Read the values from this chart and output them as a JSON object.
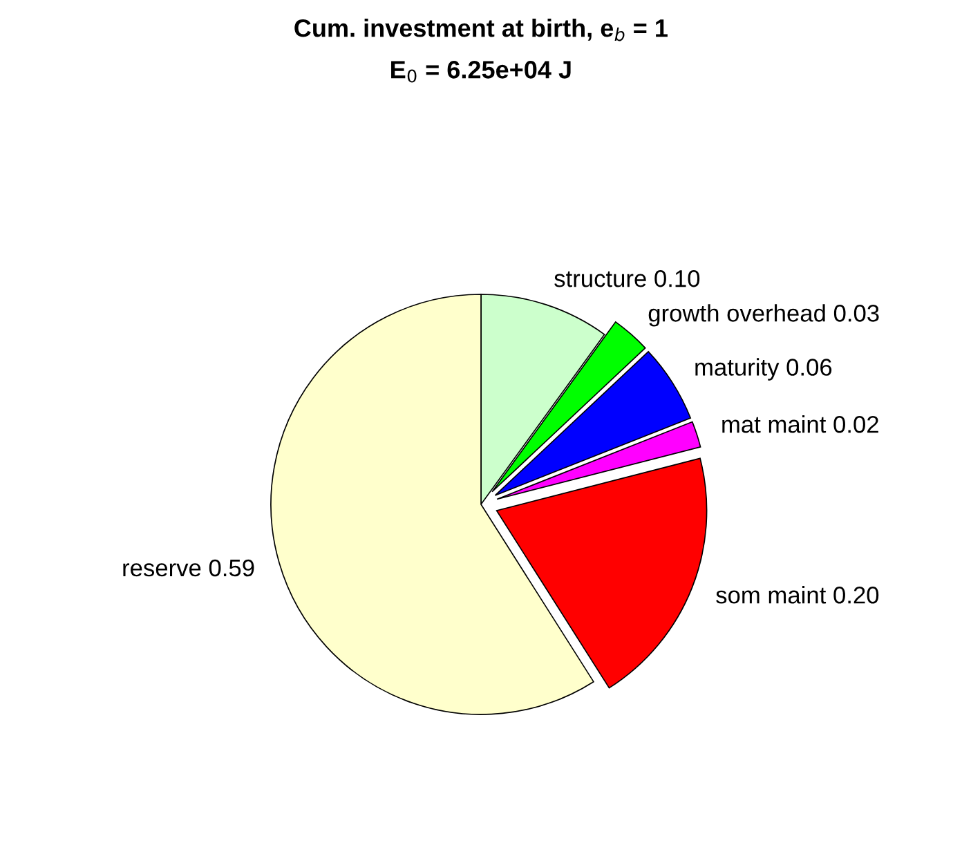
{
  "chart_data": {
    "type": "pie",
    "title": "Cum. investment at birth, e$_{b}$ = 1",
    "subtitle": "E$_{0}$ = 6.25e+04 J",
    "categories": [
      "structure",
      "growth overhead",
      "maturity",
      "mat maint",
      "som maint",
      "reserve"
    ],
    "values": [
      0.1,
      0.03,
      0.06,
      0.02,
      0.2,
      0.59
    ],
    "value_labels": [
      "0.10",
      "0.03",
      "0.06",
      "0.02",
      "0.20",
      "0.59"
    ],
    "colors": [
      "#ccffcc",
      "#00ff00",
      "#0000ff",
      "#ff00ff",
      "#ff0000",
      "#ffffcc"
    ],
    "legend": false
  }
}
